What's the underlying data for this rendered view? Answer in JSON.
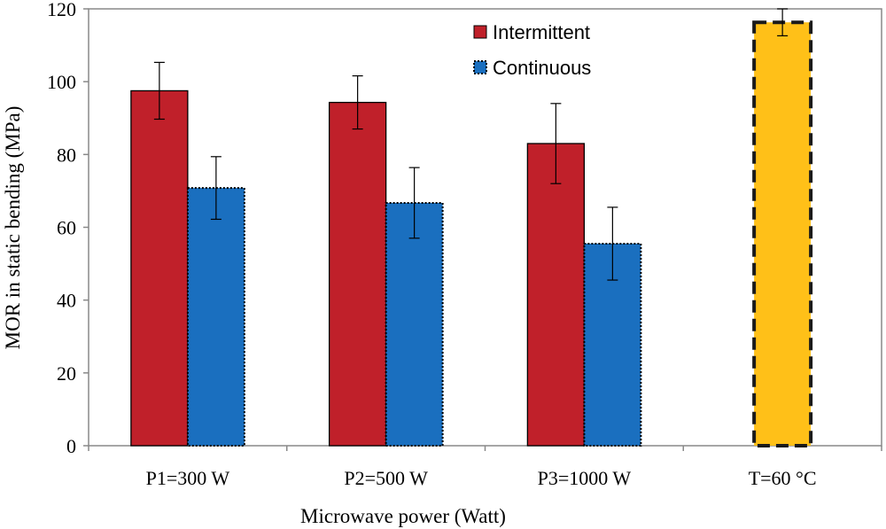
{
  "chart_data": {
    "type": "bar",
    "title": "",
    "xlabel": "Microwave power (Watt)",
    "ylabel": "MOR in static bending (MPa)",
    "ylim": [
      0,
      120
    ],
    "yticks": [
      0,
      20,
      40,
      60,
      80,
      100,
      120
    ],
    "categories": [
      "P1=300 W",
      "P2=500 W",
      "P3=1000 W",
      "T=60 °C"
    ],
    "series": [
      {
        "name": "Intermittent",
        "color": "#C0202A",
        "border": "solid",
        "values": [
          97.5,
          94.3,
          83.0,
          null
        ],
        "errors": [
          7.8,
          7.3,
          11.0,
          null
        ]
      },
      {
        "name": "Continuous",
        "color": "#1A6FBF",
        "border": "dotted",
        "values": [
          70.8,
          66.7,
          55.5,
          null
        ],
        "errors": [
          8.6,
          9.7,
          10.0,
          null
        ]
      }
    ],
    "control": {
      "category": "T=60 °C",
      "value": 116.3,
      "error": 3.7,
      "color": "#FFC018",
      "border": "dashed"
    },
    "legend": {
      "position": "top-center",
      "entries": [
        "Intermittent",
        "Continuous"
      ]
    }
  }
}
